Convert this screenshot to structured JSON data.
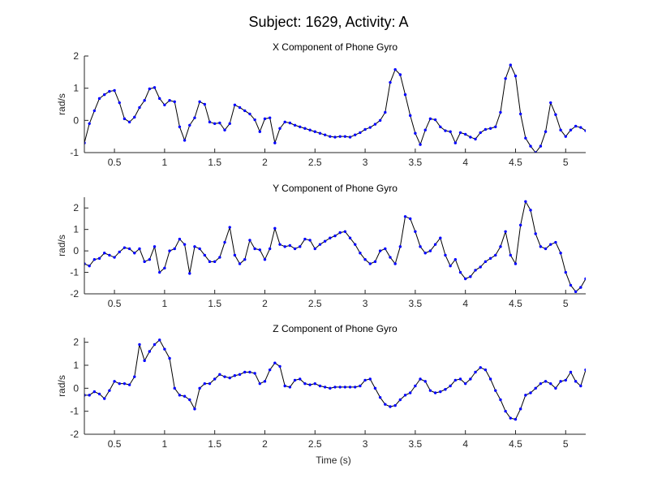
{
  "figure": {
    "suptitle": "Subject: 1629, Activity: A",
    "xlabel": "Time (s)",
    "colors": {
      "line": "#000000",
      "marker": "#0000ff",
      "axes": "#262626",
      "background": "#ffffff"
    }
  },
  "chart_data": [
    {
      "type": "line",
      "title": "X Component of Phone Gyro",
      "xlabel": "",
      "ylabel": "rad/s",
      "xlim": [
        0.2,
        5.2
      ],
      "ylim": [
        -1,
        2
      ],
      "xticks": [
        0.5,
        1,
        1.5,
        2,
        2.5,
        3,
        3.5,
        4,
        4.5,
        5
      ],
      "xtick_labels": [
        "0.5",
        "1",
        "1.5",
        "2",
        "2.5",
        "3",
        "3.5",
        "4",
        "4.5",
        "5"
      ],
      "yticks": [
        -1,
        0,
        1,
        2
      ],
      "ytick_labels": [
        "-1",
        "0",
        "1",
        "2"
      ],
      "grid": false,
      "markers": true,
      "series": [
        {
          "x": [
            0.2,
            0.25,
            0.3,
            0.35,
            0.4,
            0.45,
            0.5,
            0.55,
            0.6,
            0.65,
            0.7,
            0.75,
            0.8,
            0.85,
            0.9,
            0.95,
            1.0,
            1.05,
            1.1,
            1.15,
            1.2,
            1.25,
            1.3,
            1.35,
            1.4,
            1.45,
            1.5,
            1.55,
            1.6,
            1.65,
            1.7,
            1.75,
            1.8,
            1.85,
            1.9,
            1.95,
            2.0,
            2.05,
            2.1,
            2.15,
            2.2,
            2.25,
            2.3,
            2.35,
            2.4,
            2.45,
            2.5,
            2.55,
            2.6,
            2.65,
            2.7,
            2.75,
            2.8,
            2.85,
            2.9,
            2.95,
            3.0,
            3.05,
            3.1,
            3.15,
            3.2,
            3.25,
            3.3,
            3.35,
            3.4,
            3.45,
            3.5,
            3.55,
            3.6,
            3.65,
            3.7,
            3.75,
            3.8,
            3.85,
            3.9,
            3.95,
            4.0,
            4.05,
            4.1,
            4.15,
            4.2,
            4.25,
            4.3,
            4.35,
            4.4,
            4.45,
            4.5,
            4.55,
            4.6,
            4.65,
            4.7,
            4.75,
            4.8,
            4.85,
            4.9,
            4.95,
            5.0,
            5.05,
            5.1,
            5.15,
            5.2
          ],
          "y": [
            -0.7,
            -0.1,
            0.3,
            0.68,
            0.8,
            0.9,
            0.93,
            0.55,
            0.05,
            -0.05,
            0.1,
            0.4,
            0.62,
            0.98,
            1.02,
            0.68,
            0.48,
            0.62,
            0.58,
            -0.2,
            -0.62,
            -0.15,
            0.08,
            0.58,
            0.5,
            -0.05,
            -0.1,
            -0.08,
            -0.3,
            -0.1,
            0.48,
            0.4,
            0.3,
            0.2,
            0.02,
            -0.35,
            0.05,
            0.08,
            -0.7,
            -0.25,
            -0.05,
            -0.08,
            -0.15,
            -0.2,
            -0.25,
            -0.3,
            -0.35,
            -0.4,
            -0.45,
            -0.5,
            -0.52,
            -0.5,
            -0.5,
            -0.52,
            -0.45,
            -0.38,
            -0.28,
            -0.22,
            -0.12,
            0.0,
            0.25,
            1.18,
            1.58,
            1.42,
            0.8,
            0.15,
            -0.4,
            -0.75,
            -0.3,
            0.05,
            0.02,
            -0.2,
            -0.32,
            -0.35,
            -0.7,
            -0.38,
            -0.43,
            -0.52,
            -0.58,
            -0.38,
            -0.28,
            -0.25,
            -0.2,
            0.25,
            1.3,
            1.72,
            1.38,
            0.2,
            -0.55,
            -0.8,
            -1.0,
            -0.8,
            -0.35,
            0.55,
            0.18,
            -0.3,
            -0.5,
            -0.3,
            -0.18,
            -0.22,
            -0.32
          ]
        }
      ]
    },
    {
      "type": "line",
      "title": "Y Component of Phone Gyro",
      "xlabel": "",
      "ylabel": "rad/s",
      "xlim": [
        0.2,
        5.2
      ],
      "ylim": [
        -2,
        2.5
      ],
      "xticks": [
        0.5,
        1,
        1.5,
        2,
        2.5,
        3,
        3.5,
        4,
        4.5,
        5
      ],
      "xtick_labels": [
        "0.5",
        "1",
        "1.5",
        "2",
        "2.5",
        "3",
        "3.5",
        "4",
        "4.5",
        "5"
      ],
      "yticks": [
        -2,
        -1,
        0,
        1,
        2
      ],
      "ytick_labels": [
        "-2",
        "-1",
        "0",
        "1",
        "2"
      ],
      "grid": false,
      "markers": true,
      "series": [
        {
          "x": [
            0.2,
            0.25,
            0.3,
            0.35,
            0.4,
            0.45,
            0.5,
            0.55,
            0.6,
            0.65,
            0.7,
            0.75,
            0.8,
            0.85,
            0.9,
            0.95,
            1.0,
            1.05,
            1.1,
            1.15,
            1.2,
            1.25,
            1.3,
            1.35,
            1.4,
            1.45,
            1.5,
            1.55,
            1.6,
            1.65,
            1.7,
            1.75,
            1.8,
            1.85,
            1.9,
            1.95,
            2.0,
            2.05,
            2.1,
            2.15,
            2.2,
            2.25,
            2.3,
            2.35,
            2.4,
            2.45,
            2.5,
            2.55,
            2.6,
            2.65,
            2.7,
            2.75,
            2.8,
            2.85,
            2.9,
            2.95,
            3.0,
            3.05,
            3.1,
            3.15,
            3.2,
            3.25,
            3.3,
            3.35,
            3.4,
            3.45,
            3.5,
            3.55,
            3.6,
            3.65,
            3.7,
            3.75,
            3.8,
            3.85,
            3.9,
            3.95,
            4.0,
            4.05,
            4.1,
            4.15,
            4.2,
            4.25,
            4.3,
            4.35,
            4.4,
            4.45,
            4.5,
            4.55,
            4.6,
            4.65,
            4.7,
            4.75,
            4.8,
            4.85,
            4.9,
            4.95,
            5.0,
            5.05,
            5.1,
            5.15,
            5.2
          ],
          "y": [
            -0.6,
            -0.7,
            -0.4,
            -0.35,
            -0.1,
            -0.2,
            -0.3,
            -0.05,
            0.15,
            0.1,
            -0.1,
            0.1,
            -0.5,
            -0.4,
            0.2,
            -1.0,
            -0.8,
            0.0,
            0.1,
            0.55,
            0.3,
            -1.05,
            0.2,
            0.1,
            -0.2,
            -0.5,
            -0.5,
            -0.3,
            0.4,
            1.1,
            -0.2,
            -0.6,
            -0.4,
            0.5,
            0.1,
            0.05,
            -0.4,
            0.1,
            1.05,
            0.3,
            0.2,
            0.25,
            0.1,
            0.2,
            0.55,
            0.5,
            0.1,
            0.3,
            0.45,
            0.6,
            0.7,
            0.85,
            0.9,
            0.6,
            0.3,
            -0.1,
            -0.4,
            -0.6,
            -0.5,
            0.0,
            0.1,
            -0.3,
            -0.6,
            0.2,
            1.6,
            1.5,
            0.9,
            0.2,
            -0.1,
            0.0,
            0.3,
            0.6,
            -0.2,
            -0.7,
            -0.4,
            -1.0,
            -1.3,
            -1.2,
            -0.9,
            -0.75,
            -0.5,
            -0.35,
            -0.2,
            0.2,
            0.9,
            -0.2,
            -0.6,
            1.2,
            2.3,
            1.9,
            0.8,
            0.2,
            0.1,
            0.3,
            0.4,
            -0.1,
            -1.0,
            -1.6,
            -1.9,
            -1.7,
            -1.3
          ]
        }
      ]
    },
    {
      "type": "line",
      "title": "Z Component of Phone Gyro",
      "xlabel": "Time (s)",
      "ylabel": "rad/s",
      "xlim": [
        0.2,
        5.2
      ],
      "ylim": [
        -2,
        2.2
      ],
      "xticks": [
        0.5,
        1,
        1.5,
        2,
        2.5,
        3,
        3.5,
        4,
        4.5,
        5
      ],
      "xtick_labels": [
        "0.5",
        "1",
        "1.5",
        "2",
        "2.5",
        "3",
        "3.5",
        "4",
        "4.5",
        "5"
      ],
      "yticks": [
        -2,
        -1,
        0,
        1,
        2
      ],
      "ytick_labels": [
        "-2",
        "-1",
        "0",
        "1",
        "2"
      ],
      "grid": false,
      "markers": true,
      "series": [
        {
          "x": [
            0.2,
            0.25,
            0.3,
            0.35,
            0.4,
            0.45,
            0.5,
            0.55,
            0.6,
            0.65,
            0.7,
            0.75,
            0.8,
            0.85,
            0.9,
            0.95,
            1.0,
            1.05,
            1.1,
            1.15,
            1.2,
            1.25,
            1.3,
            1.35,
            1.4,
            1.45,
            1.5,
            1.55,
            1.6,
            1.65,
            1.7,
            1.75,
            1.8,
            1.85,
            1.9,
            1.95,
            2.0,
            2.05,
            2.1,
            2.15,
            2.2,
            2.25,
            2.3,
            2.35,
            2.4,
            2.45,
            2.5,
            2.55,
            2.6,
            2.65,
            2.7,
            2.75,
            2.8,
            2.85,
            2.9,
            2.95,
            3.0,
            3.05,
            3.1,
            3.15,
            3.2,
            3.25,
            3.3,
            3.35,
            3.4,
            3.45,
            3.5,
            3.55,
            3.6,
            3.65,
            3.7,
            3.75,
            3.8,
            3.85,
            3.9,
            3.95,
            4.0,
            4.05,
            4.1,
            4.15,
            4.2,
            4.25,
            4.3,
            4.35,
            4.4,
            4.45,
            4.5,
            4.55,
            4.6,
            4.65,
            4.7,
            4.75,
            4.8,
            4.85,
            4.9,
            4.95,
            5.0,
            5.05,
            5.1,
            5.15,
            5.2
          ],
          "y": [
            -0.3,
            -0.3,
            -0.15,
            -0.25,
            -0.45,
            -0.1,
            0.3,
            0.2,
            0.2,
            0.15,
            0.5,
            1.9,
            1.2,
            1.6,
            1.9,
            2.1,
            1.7,
            1.3,
            0.0,
            -0.3,
            -0.35,
            -0.5,
            -0.9,
            0.0,
            0.2,
            0.2,
            0.4,
            0.6,
            0.5,
            0.45,
            0.55,
            0.6,
            0.7,
            0.7,
            0.65,
            0.2,
            0.3,
            0.8,
            1.1,
            0.95,
            0.1,
            0.05,
            0.35,
            0.4,
            0.2,
            0.15,
            0.2,
            0.1,
            0.05,
            0.0,
            0.05,
            0.05,
            0.05,
            0.05,
            0.05,
            0.1,
            0.35,
            0.4,
            0.0,
            -0.4,
            -0.7,
            -0.8,
            -0.75,
            -0.5,
            -0.3,
            -0.2,
            0.1,
            0.4,
            0.3,
            -0.1,
            -0.2,
            -0.15,
            -0.05,
            0.1,
            0.35,
            0.4,
            0.2,
            0.4,
            0.7,
            0.9,
            0.8,
            0.4,
            -0.1,
            -0.5,
            -1.0,
            -1.3,
            -1.35,
            -0.9,
            -0.3,
            -0.2,
            0.0,
            0.2,
            0.3,
            0.2,
            0.0,
            0.3,
            0.35,
            0.7,
            0.3,
            0.1,
            0.8
          ]
        }
      ]
    }
  ]
}
